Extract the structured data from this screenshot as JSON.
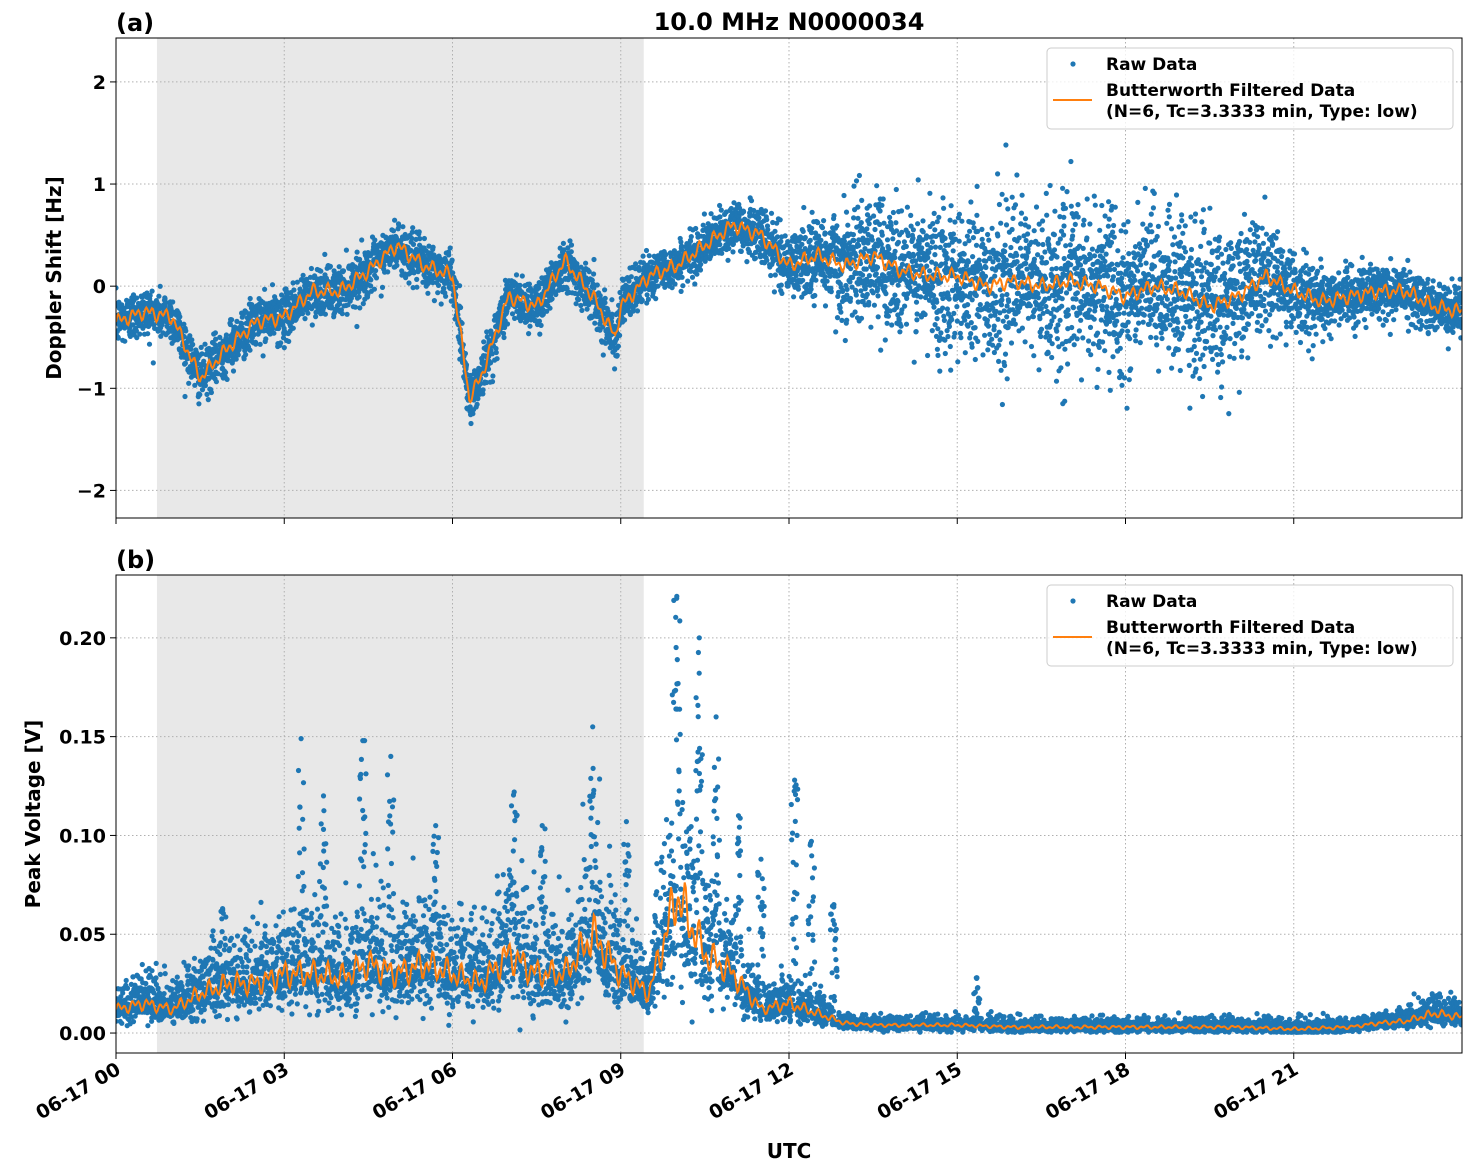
{
  "chart_data": [
    {
      "type": "scatter+line",
      "panel_label": "(a)",
      "title": "10.0 MHz N0000034",
      "xlabel": "",
      "ylabel": "Doppler Shift [Hz]",
      "x_ticks": [
        "06-17 00",
        "06-17 03",
        "06-17 06",
        "06-17 09",
        "06-17 12",
        "06-17 15",
        "06-17 18",
        "06-17 21"
      ],
      "x_tick_hours": [
        0,
        3,
        6,
        9,
        12,
        15,
        18,
        21
      ],
      "xlim_hours": [
        0,
        24
      ],
      "ylim": [
        -2.27,
        2.43
      ],
      "y_ticks": [
        -2,
        -1,
        0,
        1,
        2
      ],
      "y_tick_labels": [
        "−2",
        "−1",
        "0",
        "1",
        "2"
      ],
      "grid": true,
      "shaded_interval_hours": [
        0.73,
        9.41
      ],
      "shade_color": "#e8e8e8",
      "legend_position": "top-right",
      "series": [
        {
          "name": "Raw Data",
          "kind": "scatter",
          "color": "#1f77b4",
          "hours_spread": [
            [
              0,
              0.15
            ],
            [
              9,
              0.15
            ],
            [
              10,
              0.12
            ],
            [
              12,
              0.18
            ],
            [
              13,
              0.35
            ],
            [
              15,
              0.45
            ],
            [
              18,
              0.5
            ],
            [
              20,
              0.4
            ],
            [
              21,
              0.25
            ],
            [
              22,
              0.15
            ],
            [
              24,
              0.15
            ]
          ]
        },
        {
          "name": "Butterworth Filtered Data\n(N=6, Tc=3.3333 min, Type: low)",
          "legend_lines": [
            "Butterworth Filtered Data",
            "(N=6, Tc=3.3333 min, Type: low)"
          ],
          "kind": "line",
          "color": "#ff7f0e",
          "hours": [
            0,
            0.5,
            1,
            1.5,
            2,
            2.5,
            3,
            3.5,
            4,
            4.5,
            5,
            5.5,
            6,
            6.3,
            6.5,
            7,
            7.5,
            8,
            8.5,
            8.9,
            9,
            9.5,
            10,
            10.5,
            11,
            11.5,
            12,
            12.5,
            13,
            13.5,
            14,
            14.5,
            15,
            15.5,
            16,
            16.5,
            17,
            17.5,
            18,
            18.5,
            19,
            19.5,
            20,
            20.5,
            21,
            21.5,
            22,
            22.5,
            23,
            23.5,
            24
          ],
          "values": [
            -0.35,
            -0.25,
            -0.3,
            -0.9,
            -0.6,
            -0.35,
            -0.3,
            -0.05,
            -0.05,
            0.15,
            0.4,
            0.2,
            0.1,
            -1.1,
            -0.9,
            -0.1,
            -0.2,
            0.25,
            -0.1,
            -0.5,
            -0.2,
            0.1,
            0.2,
            0.4,
            0.6,
            0.5,
            0.2,
            0.3,
            0.2,
            0.3,
            0.15,
            0.1,
            0.1,
            0.0,
            0.05,
            0.0,
            0.05,
            0.0,
            -0.1,
            0.0,
            -0.05,
            -0.2,
            -0.1,
            0.1,
            -0.05,
            -0.15,
            -0.1,
            -0.05,
            -0.05,
            -0.2,
            -0.25
          ]
        }
      ]
    },
    {
      "type": "scatter+line",
      "panel_label": "(b)",
      "title": "",
      "xlabel": "UTC",
      "ylabel": "Peak Voltage [V]",
      "x_ticks": [
        "06-17 00",
        "06-17 03",
        "06-17 06",
        "06-17 09",
        "06-17 12",
        "06-17 15",
        "06-17 18",
        "06-17 21"
      ],
      "x_tick_hours": [
        0,
        3,
        6,
        9,
        12,
        15,
        18,
        21
      ],
      "xlim_hours": [
        0,
        24
      ],
      "ylim": [
        -0.0101,
        0.2318
      ],
      "y_ticks": [
        0,
        0.05,
        0.1,
        0.15,
        0.2
      ],
      "y_tick_labels": [
        "0.00",
        "0.05",
        "0.10",
        "0.15",
        "0.20"
      ],
      "grid": true,
      "shaded_interval_hours": [
        0.73,
        9.41
      ],
      "shade_color": "#e8e8e8",
      "legend_position": "top-right",
      "series": [
        {
          "name": "Raw Data",
          "kind": "scatter",
          "color": "#1f77b4",
          "spikes": [
            [
              1.9,
              0.063
            ],
            [
              3.3,
              0.149
            ],
            [
              3.7,
              0.12
            ],
            [
              4.4,
              0.148
            ],
            [
              4.9,
              0.14
            ],
            [
              5.7,
              0.105
            ],
            [
              7.1,
              0.122
            ],
            [
              7.6,
              0.105
            ],
            [
              8.5,
              0.155
            ],
            [
              9.1,
              0.107
            ],
            [
              10.0,
              0.221
            ],
            [
              10.4,
              0.2
            ],
            [
              10.7,
              0.16
            ],
            [
              11.1,
              0.11
            ],
            [
              11.5,
              0.088
            ],
            [
              12.1,
              0.128
            ],
            [
              12.4,
              0.097
            ],
            [
              12.8,
              0.065
            ],
            [
              15.35,
              0.028
            ]
          ]
        },
        {
          "name": "Butterworth Filtered Data\n(N=6, Tc=3.3333 min, Type: low)",
          "legend_lines": [
            "Butterworth Filtered Data",
            "(N=6, Tc=3.3333 min, Type: low)"
          ],
          "kind": "line",
          "color": "#ff7f0e",
          "hours": [
            0,
            0.5,
            1,
            1.5,
            2,
            2.5,
            3,
            3.5,
            4,
            4.5,
            5,
            5.5,
            6,
            6.5,
            7,
            7.5,
            8,
            8.5,
            9,
            9.5,
            10,
            10.5,
            11,
            11.5,
            12,
            12.5,
            13,
            13.5,
            14,
            15,
            16,
            17,
            18,
            19,
            20,
            21,
            22,
            22.5,
            23,
            23.5,
            24
          ],
          "values": [
            0.012,
            0.015,
            0.012,
            0.02,
            0.025,
            0.025,
            0.03,
            0.03,
            0.028,
            0.035,
            0.03,
            0.035,
            0.03,
            0.025,
            0.04,
            0.03,
            0.03,
            0.05,
            0.03,
            0.02,
            0.07,
            0.04,
            0.03,
            0.012,
            0.015,
            0.01,
            0.005,
            0.004,
            0.004,
            0.004,
            0.003,
            0.003,
            0.003,
            0.003,
            0.003,
            0.002,
            0.003,
            0.005,
            0.006,
            0.01,
            0.008
          ]
        }
      ]
    }
  ]
}
